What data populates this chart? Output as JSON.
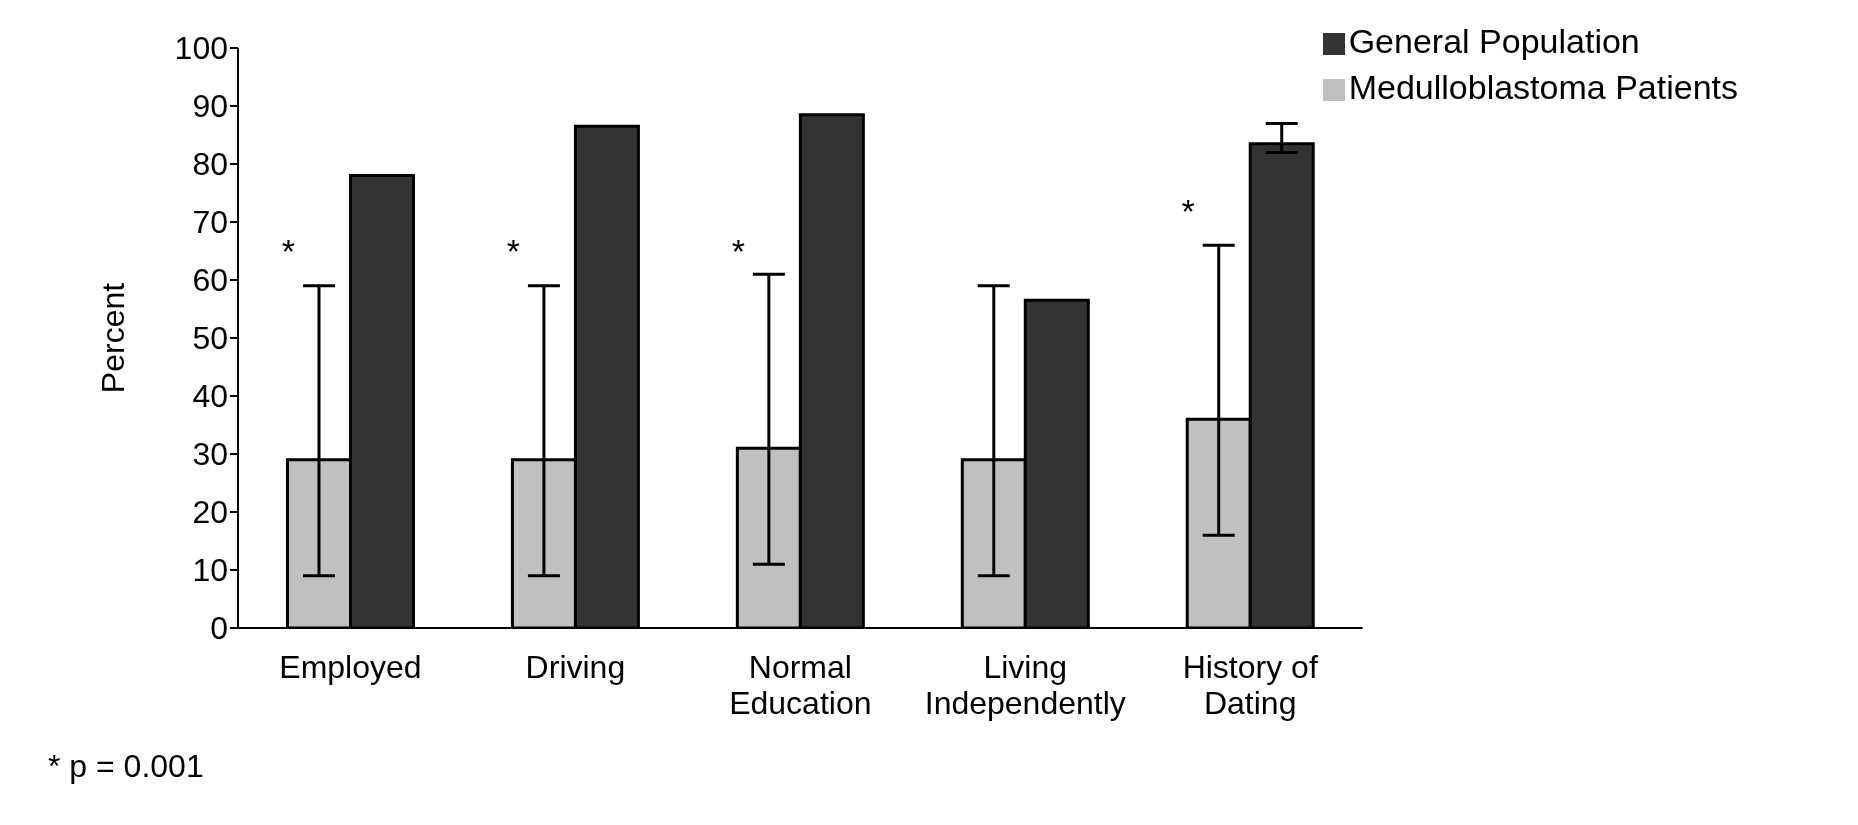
{
  "chart_data": {
    "type": "bar",
    "ylabel": "Percent",
    "categories": [
      "Employed",
      "Driving",
      "Normal Education",
      "Living Independently",
      "History of Dating"
    ],
    "series": [
      {
        "name": "Medulloblastoma Patients",
        "color": "#c0c0c0",
        "values": [
          29,
          29,
          31,
          29,
          36
        ],
        "errors": [
          [
            9,
            59
          ],
          [
            9,
            59
          ],
          [
            11,
            61
          ],
          [
            9,
            59
          ],
          [
            16,
            66
          ]
        ]
      },
      {
        "name": "General Population",
        "color": "#333333",
        "values": [
          78,
          86.5,
          88.5,
          56.5,
          83.5
        ],
        "errors": [
          null,
          null,
          null,
          null,
          [
            82,
            87
          ]
        ]
      }
    ],
    "ylim": [
      0,
      100
    ],
    "yticks": [
      0,
      10,
      20,
      30,
      40,
      50,
      60,
      70,
      80,
      90,
      100
    ],
    "grid": false,
    "legend": "top right",
    "annotations": [
      {
        "text": "*",
        "x": "Employed",
        "y": 62
      },
      {
        "text": "*",
        "x": "Driving",
        "y": 62
      },
      {
        "text": "*",
        "x": "Normal Education",
        "y": 62
      },
      {
        "text": "*",
        "x": "History of Dating",
        "y": 69
      },
      "* p = 0.001"
    ]
  }
}
